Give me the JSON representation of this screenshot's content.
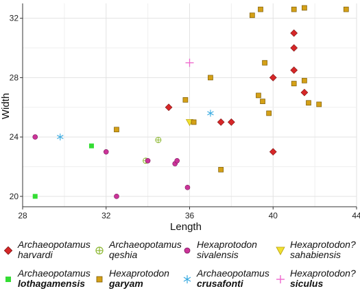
{
  "chart_data": {
    "type": "scatter",
    "title": "",
    "xlabel": "Length",
    "ylabel": "Width",
    "xlim": [
      28,
      44
    ],
    "ylim": [
      19.3,
      33
    ],
    "xticks": [
      28,
      32,
      36,
      40,
      44
    ],
    "yticks": [
      20,
      24,
      28,
      32
    ],
    "grid": true,
    "legend_position": "bottom",
    "series": [
      {
        "genus": "Archaeopotamus",
        "species": "harvardi",
        "species_bold": false,
        "marker": "diamond",
        "color": "#d62728",
        "points": [
          [
            35,
            26
          ],
          [
            37.5,
            25
          ],
          [
            38,
            25
          ],
          [
            40,
            28
          ],
          [
            40,
            23
          ],
          [
            41,
            31
          ],
          [
            41,
            30
          ],
          [
            41,
            28.5
          ],
          [
            41.5,
            27
          ]
        ]
      },
      {
        "genus": "Archaeopotamus",
        "species": "qeshia",
        "species_bold": false,
        "marker": "circle-plus",
        "color": "#8db833",
        "points": [
          [
            34.5,
            23.8
          ],
          [
            33.9,
            22.4
          ]
        ]
      },
      {
        "genus": "Hexaprotodon",
        "species": "sivalensis",
        "species_bold": false,
        "marker": "circle",
        "color": "#cc3399",
        "points": [
          [
            28.6,
            24
          ],
          [
            32,
            23
          ],
          [
            34,
            22.4
          ],
          [
            35.3,
            22.2
          ],
          [
            35.4,
            22.4
          ],
          [
            32.5,
            20
          ],
          [
            35.9,
            20.6
          ]
        ]
      },
      {
        "genus": "Hexaprotodon?",
        "species": "sahabiensis",
        "species_bold": false,
        "marker": "triangle-down",
        "color": "#f0e030",
        "points": [
          [
            36,
            25
          ]
        ]
      },
      {
        "genus": "Archaeopotamus",
        "species": "lothagamensis",
        "species_bold": true,
        "marker": "square",
        "color": "#33dd33",
        "points": [
          [
            31.3,
            23.4
          ],
          [
            28.6,
            20
          ]
        ]
      },
      {
        "genus": "Hexaprotodon",
        "species": "garyam",
        "species_bold": true,
        "marker": "square",
        "color": "#d4a017",
        "points": [
          [
            32.5,
            24.5
          ],
          [
            36.2,
            25
          ],
          [
            35.8,
            26.5
          ],
          [
            37,
            28
          ],
          [
            37.5,
            21.8
          ],
          [
            39,
            32.2
          ],
          [
            39.4,
            32.6
          ],
          [
            39.3,
            26.8
          ],
          [
            39.5,
            26.4
          ],
          [
            39.6,
            29
          ],
          [
            39.8,
            25.6
          ],
          [
            41,
            32.6
          ],
          [
            41,
            27.6
          ],
          [
            41.5,
            32.7
          ],
          [
            41.5,
            27.8
          ],
          [
            41.7,
            26.3
          ],
          [
            42.2,
            26.2
          ],
          [
            43.5,
            32.6
          ]
        ]
      },
      {
        "genus": "Archaeopotamus",
        "species": "crusafonti",
        "species_bold": true,
        "marker": "asterisk",
        "color": "#33a8e0",
        "points": [
          [
            29.8,
            24
          ],
          [
            37,
            25.6
          ]
        ]
      },
      {
        "genus": "Hexaprotodon?",
        "species": "siculus",
        "species_bold": true,
        "marker": "plus",
        "color": "#ee66cc",
        "points": [
          [
            36,
            29
          ]
        ]
      }
    ]
  }
}
